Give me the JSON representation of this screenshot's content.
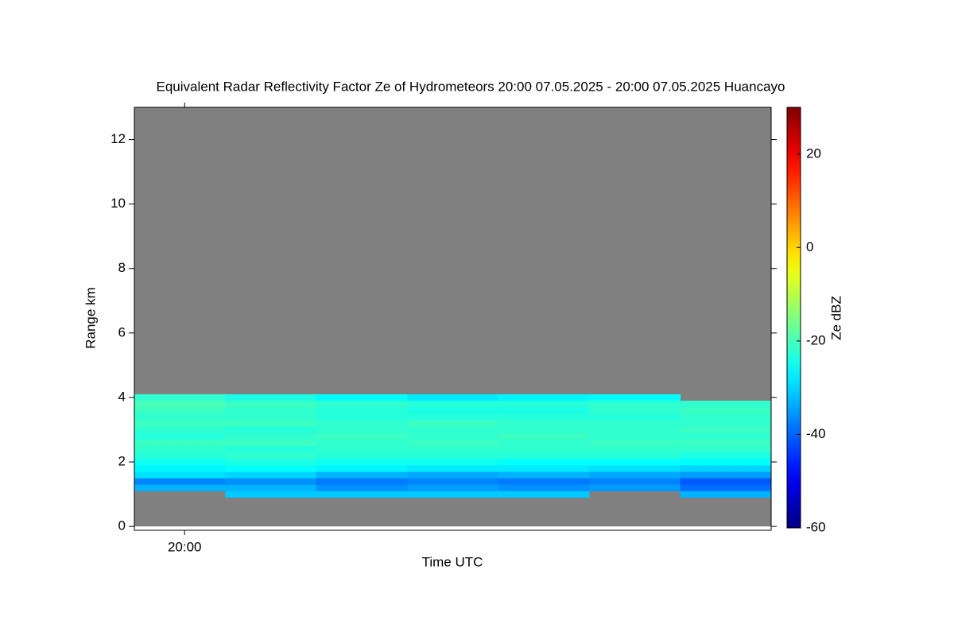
{
  "chart_data": {
    "type": "heatmap",
    "title": "Equivalent Radar Reflectivity Factor Ze of Hydrometeors   20:00 07.05.2025 - 20:00 07.05.2025 Huancayo",
    "x_label": "Time UTC",
    "y_label": "Range km",
    "colorbar_label": "Ze dBZ",
    "colormap": "jet",
    "categories": [
      "20:00",
      null,
      null,
      null,
      null,
      null,
      null
    ],
    "range_bins": [
      0.9,
      1.1,
      1.3,
      1.5,
      1.7,
      1.9,
      2.1,
      2.3,
      2.5,
      2.7,
      2.9,
      3.1,
      3.3,
      3.5,
      3.7,
      3.9,
      4.1
    ],
    "values": [
      [
        null,
        -33,
        -37,
        -29,
        -27,
        -25,
        -23,
        -22,
        -21,
        -23,
        -22,
        -21,
        -22,
        -21,
        -20,
        -22
      ],
      [
        -31,
        -33,
        -36,
        -30,
        -26,
        -24,
        -22,
        -23,
        -21,
        -22,
        -23,
        -21,
        -22,
        -22,
        -21,
        -24
      ],
      [
        -31,
        -36,
        -38,
        -33,
        -27,
        -25,
        -23,
        -22,
        -22,
        -21,
        -22,
        -22,
        -23,
        -23,
        -22,
        -26
      ],
      [
        -31,
        -35,
        -37,
        -34,
        -28,
        -25,
        -23,
        -22,
        -21,
        -22,
        -22,
        -21,
        -23,
        -24,
        -23,
        -28
      ],
      [
        -31,
        -36,
        -38,
        -33,
        -28,
        -26,
        -23,
        -22,
        -22,
        -21,
        -22,
        -22,
        -23,
        -24,
        -23,
        -27
      ],
      [
        null,
        -35,
        -37,
        -34,
        -29,
        -26,
        -23,
        -22,
        -21,
        -22,
        -22,
        -22,
        -23,
        -22,
        -22,
        -26
      ],
      [
        -33,
        -39,
        -41,
        -35,
        -30,
        -26,
        -24,
        -22,
        -21,
        -22,
        -21,
        -22,
        -22,
        -21,
        -22,
        null
      ]
    ],
    "ylim": [
      -0.12,
      13
    ],
    "yticks": [
      0,
      2,
      4,
      6,
      8,
      10,
      12
    ],
    "clim": [
      -60,
      30
    ],
    "cticks": [
      -60,
      -40,
      -20,
      0,
      20
    ],
    "background_color": "#808080"
  }
}
